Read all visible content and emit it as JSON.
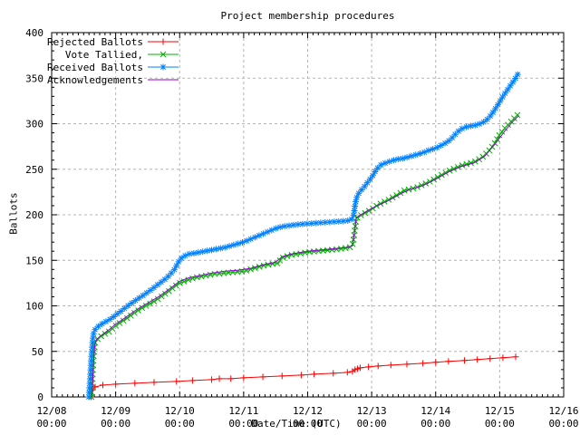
{
  "chart_data": {
    "type": "line",
    "title": "Project membership procedures",
    "xlabel": "Date/Time (UTC)",
    "ylabel": "Ballots",
    "x_axis": {
      "tick_labels": [
        "12/08",
        "12/09",
        "12/10",
        "12/11",
        "12/12",
        "12/13",
        "12/14",
        "12/15",
        "12/16"
      ],
      "tick_sublabel": "00:00",
      "range_days": [
        0,
        8
      ],
      "minor_ticks_per_day": 12,
      "grid": true
    },
    "y_axis": {
      "min": 0,
      "max": 400,
      "major_step": 50,
      "minor_step": 10,
      "tick_labels": [
        "0",
        "50",
        "100",
        "150",
        "200",
        "250",
        "300",
        "350",
        "400"
      ],
      "grid": true
    },
    "grid_color": "#b4b4b4",
    "border_color": "#000000",
    "legend_position": "top-left",
    "series": [
      {
        "name": "rejected-ballots",
        "label": "Rejected Ballots",
        "color": "#ff0000",
        "marker": "plus",
        "dense": false,
        "points": [
          [
            0.62,
            0
          ],
          [
            0.64,
            8
          ],
          [
            0.68,
            11
          ],
          [
            0.8,
            13
          ],
          [
            1.0,
            14
          ],
          [
            1.3,
            15
          ],
          [
            1.6,
            16
          ],
          [
            1.95,
            17
          ],
          [
            2.2,
            18
          ],
          [
            2.5,
            19
          ],
          [
            2.62,
            20
          ],
          [
            2.8,
            20
          ],
          [
            3.0,
            21
          ],
          [
            3.3,
            22
          ],
          [
            3.6,
            23
          ],
          [
            3.9,
            24
          ],
          [
            4.1,
            25
          ],
          [
            4.4,
            26
          ],
          [
            4.62,
            27
          ],
          [
            4.7,
            28
          ],
          [
            4.74,
            30
          ],
          [
            4.78,
            31
          ],
          [
            4.82,
            32
          ],
          [
            4.95,
            33
          ],
          [
            5.1,
            34
          ],
          [
            5.3,
            35
          ],
          [
            5.55,
            36
          ],
          [
            5.8,
            37
          ],
          [
            6.0,
            38
          ],
          [
            6.2,
            39
          ],
          [
            6.45,
            40
          ],
          [
            6.65,
            41
          ],
          [
            6.85,
            42
          ],
          [
            7.05,
            43
          ],
          [
            7.25,
            44
          ]
        ]
      },
      {
        "name": "vote-tallied",
        "label": "Vote Tallied,",
        "color": "#00b000",
        "marker": "cross",
        "dense": true,
        "points": [
          [
            0.62,
            0
          ],
          [
            0.64,
            25
          ],
          [
            0.66,
            48
          ],
          [
            0.68,
            60
          ],
          [
            0.72,
            64
          ],
          [
            0.8,
            68
          ],
          [
            0.9,
            72
          ],
          [
            1.0,
            78
          ],
          [
            1.08,
            82
          ],
          [
            1.17,
            86
          ],
          [
            1.25,
            90
          ],
          [
            1.33,
            94
          ],
          [
            1.42,
            98
          ],
          [
            1.5,
            101
          ],
          [
            1.58,
            104
          ],
          [
            1.67,
            108
          ],
          [
            1.75,
            112
          ],
          [
            1.83,
            116
          ],
          [
            1.92,
            121
          ],
          [
            2.0,
            125
          ],
          [
            2.08,
            127
          ],
          [
            2.15,
            129
          ],
          [
            2.25,
            131
          ],
          [
            2.4,
            133
          ],
          [
            2.55,
            135
          ],
          [
            2.7,
            136
          ],
          [
            2.85,
            137
          ],
          [
            3.0,
            138
          ],
          [
            3.1,
            140
          ],
          [
            3.2,
            142
          ],
          [
            3.3,
            144
          ],
          [
            3.45,
            146
          ],
          [
            3.55,
            147
          ],
          [
            3.58,
            152
          ],
          [
            3.65,
            154
          ],
          [
            3.75,
            156
          ],
          [
            3.85,
            157
          ],
          [
            4.0,
            159
          ],
          [
            4.15,
            160
          ],
          [
            4.3,
            161
          ],
          [
            4.45,
            162
          ],
          [
            4.55,
            163
          ],
          [
            4.65,
            164
          ],
          [
            4.7,
            166
          ],
          [
            4.72,
            175
          ],
          [
            4.74,
            185
          ],
          [
            4.76,
            196
          ],
          [
            4.82,
            199
          ],
          [
            4.9,
            202
          ],
          [
            5.0,
            206
          ],
          [
            5.08,
            210
          ],
          [
            5.16,
            213
          ],
          [
            5.25,
            216
          ],
          [
            5.35,
            220
          ],
          [
            5.45,
            224
          ],
          [
            5.52,
            227
          ],
          [
            5.6,
            228
          ],
          [
            5.7,
            230
          ],
          [
            5.8,
            233
          ],
          [
            5.9,
            236
          ],
          [
            6.0,
            240
          ],
          [
            6.1,
            244
          ],
          [
            6.2,
            248
          ],
          [
            6.3,
            251
          ],
          [
            6.4,
            254
          ],
          [
            6.5,
            256
          ],
          [
            6.6,
            258
          ],
          [
            6.68,
            261
          ],
          [
            6.76,
            265
          ],
          [
            6.84,
            271
          ],
          [
            6.92,
            278
          ],
          [
            7.0,
            288
          ],
          [
            7.08,
            295
          ],
          [
            7.16,
            301
          ],
          [
            7.24,
            307
          ],
          [
            7.3,
            311
          ]
        ]
      },
      {
        "name": "received-ballots",
        "label": "Received Ballots",
        "color": "#0080ff",
        "marker": "star",
        "dense": true,
        "points": [
          [
            0.58,
            0
          ],
          [
            0.6,
            20
          ],
          [
            0.62,
            45
          ],
          [
            0.64,
            62
          ],
          [
            0.66,
            72
          ],
          [
            0.7,
            76
          ],
          [
            0.78,
            80
          ],
          [
            0.88,
            84
          ],
          [
            0.95,
            87
          ],
          [
            1.0,
            90
          ],
          [
            1.08,
            94
          ],
          [
            1.17,
            99
          ],
          [
            1.25,
            103
          ],
          [
            1.33,
            107
          ],
          [
            1.42,
            111
          ],
          [
            1.5,
            115
          ],
          [
            1.58,
            119
          ],
          [
            1.67,
            124
          ],
          [
            1.75,
            128
          ],
          [
            1.83,
            133
          ],
          [
            1.92,
            140
          ],
          [
            1.98,
            148
          ],
          [
            2.02,
            152
          ],
          [
            2.08,
            155
          ],
          [
            2.15,
            157
          ],
          [
            2.25,
            158
          ],
          [
            2.4,
            160
          ],
          [
            2.55,
            162
          ],
          [
            2.7,
            164
          ],
          [
            2.85,
            167
          ],
          [
            3.0,
            170
          ],
          [
            3.1,
            173
          ],
          [
            3.2,
            176
          ],
          [
            3.3,
            179
          ],
          [
            3.4,
            182
          ],
          [
            3.5,
            185
          ],
          [
            3.6,
            187
          ],
          [
            3.7,
            188
          ],
          [
            3.8,
            189
          ],
          [
            3.95,
            190
          ],
          [
            4.15,
            191
          ],
          [
            4.35,
            192
          ],
          [
            4.55,
            193
          ],
          [
            4.68,
            194
          ],
          [
            4.72,
            200
          ],
          [
            4.74,
            210
          ],
          [
            4.76,
            218
          ],
          [
            4.8,
            224
          ],
          [
            4.85,
            228
          ],
          [
            4.9,
            232
          ],
          [
            4.95,
            237
          ],
          [
            5.0,
            241
          ],
          [
            5.05,
            247
          ],
          [
            5.1,
            252
          ],
          [
            5.15,
            255
          ],
          [
            5.22,
            257
          ],
          [
            5.3,
            259
          ],
          [
            5.4,
            261
          ],
          [
            5.5,
            262
          ],
          [
            5.6,
            264
          ],
          [
            5.7,
            266
          ],
          [
            5.8,
            268
          ],
          [
            5.9,
            271
          ],
          [
            6.0,
            273
          ],
          [
            6.08,
            276
          ],
          [
            6.16,
            279
          ],
          [
            6.24,
            283
          ],
          [
            6.3,
            288
          ],
          [
            6.36,
            292
          ],
          [
            6.42,
            295
          ],
          [
            6.5,
            297
          ],
          [
            6.6,
            298
          ],
          [
            6.7,
            300
          ],
          [
            6.78,
            303
          ],
          [
            6.85,
            308
          ],
          [
            6.92,
            315
          ],
          [
            7.0,
            324
          ],
          [
            7.06,
            331
          ],
          [
            7.12,
            337
          ],
          [
            7.18,
            343
          ],
          [
            7.24,
            349
          ],
          [
            7.28,
            354
          ],
          [
            7.3,
            356
          ]
        ]
      },
      {
        "name": "acknowledgements",
        "label": "Acknowledgements",
        "color": "#9400d3",
        "marker": "none",
        "dense": false,
        "points": [
          [
            0.63,
            0
          ],
          [
            0.65,
            30
          ],
          [
            0.67,
            55
          ],
          [
            0.7,
            63
          ],
          [
            0.8,
            69
          ],
          [
            0.9,
            74
          ],
          [
            1.0,
            80
          ],
          [
            1.17,
            88
          ],
          [
            1.33,
            96
          ],
          [
            1.5,
            103
          ],
          [
            1.67,
            110
          ],
          [
            1.83,
            118
          ],
          [
            2.0,
            127
          ],
          [
            2.15,
            131
          ],
          [
            2.3,
            133
          ],
          [
            2.5,
            136
          ],
          [
            2.7,
            138
          ],
          [
            2.9,
            139
          ],
          [
            3.1,
            141
          ],
          [
            3.3,
            145
          ],
          [
            3.5,
            148
          ],
          [
            3.6,
            154
          ],
          [
            3.75,
            157
          ],
          [
            4.0,
            160
          ],
          [
            4.3,
            162
          ],
          [
            4.6,
            164
          ],
          [
            4.7,
            166
          ],
          [
            4.73,
            180
          ],
          [
            4.76,
            197
          ],
          [
            4.9,
            203
          ],
          [
            5.0,
            207
          ],
          [
            5.15,
            212
          ],
          [
            5.3,
            217
          ],
          [
            5.45,
            223
          ],
          [
            5.6,
            228
          ],
          [
            5.8,
            232
          ],
          [
            6.0,
            239
          ],
          [
            6.2,
            247
          ],
          [
            6.4,
            253
          ],
          [
            6.6,
            257
          ],
          [
            6.76,
            264
          ],
          [
            6.92,
            277
          ],
          [
            7.08,
            292
          ],
          [
            7.2,
            302
          ],
          [
            7.3,
            309
          ]
        ]
      }
    ]
  }
}
